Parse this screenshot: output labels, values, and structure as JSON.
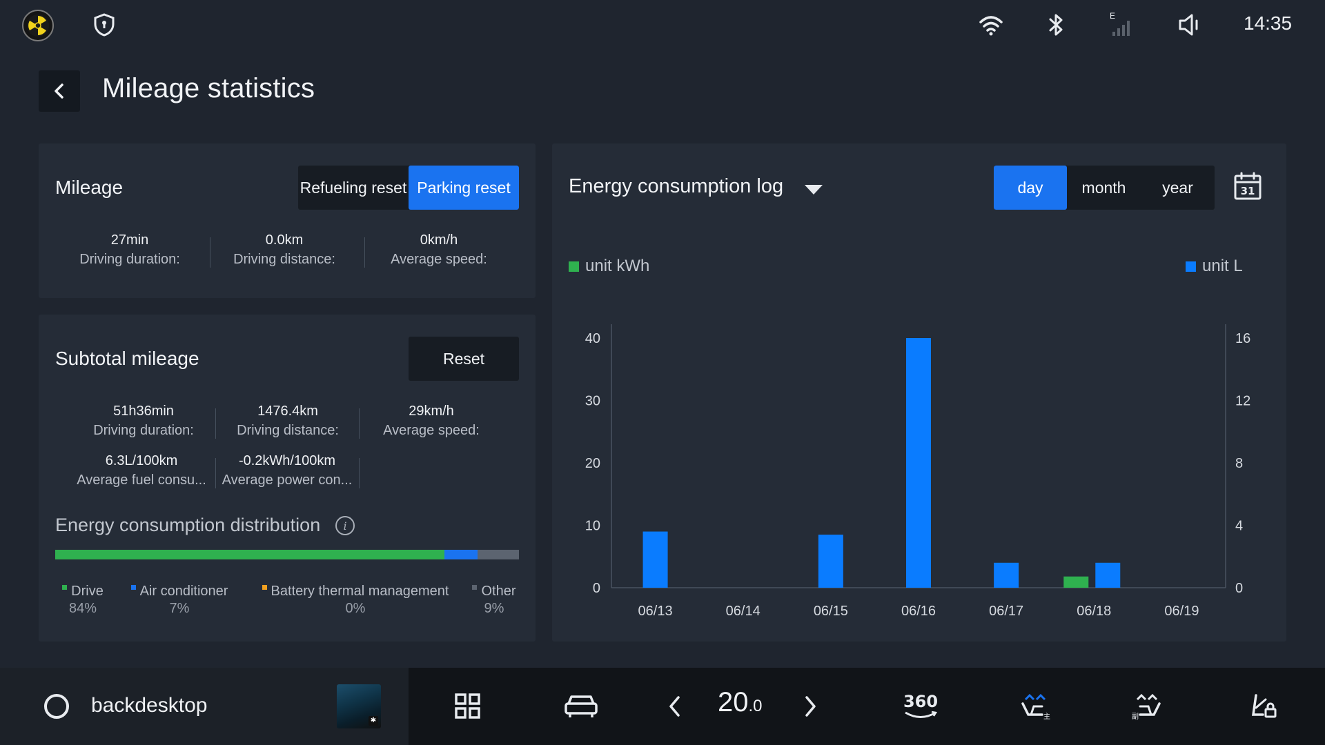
{
  "status_bar": {
    "time": "14:35",
    "icons": [
      "logo-icon",
      "shield-icon",
      "wifi-icon",
      "bluetooth-icon",
      "cellular-signal-icon",
      "volume-muted-icon"
    ],
    "signal_label": "E"
  },
  "header": {
    "title": "Mileage statistics"
  },
  "mileage": {
    "title": "Mileage",
    "modes": [
      "Refueling reset",
      "Parking reset"
    ],
    "active_mode": "Parking reset",
    "stats": [
      {
        "value": "27min",
        "label": "Driving duration:"
      },
      {
        "value": "0.0km",
        "label": "Driving distance:"
      },
      {
        "value": "0km/h",
        "label": "Average speed:"
      }
    ]
  },
  "subtotal": {
    "title": "Subtotal mileage",
    "reset_label": "Reset",
    "stats": [
      {
        "value": "51h36min",
        "label": "Driving duration:"
      },
      {
        "value": "1476.4km",
        "label": "Driving distance:"
      },
      {
        "value": "29km/h",
        "label": "Average speed:"
      },
      {
        "value": "6.3L/100km",
        "label": "Average fuel consu..."
      },
      {
        "value": "-0.2kWh/100km",
        "label": "Average power con..."
      }
    ]
  },
  "distribution": {
    "title": "Energy consumption distribution",
    "bar_shares": [
      84,
      7,
      0,
      9
    ],
    "items": [
      {
        "name": "Drive",
        "percent": "84%",
        "color": "#2fb14f"
      },
      {
        "name": "Air conditioner",
        "percent": "7%",
        "color": "#1a73f0"
      },
      {
        "name": "Battery thermal management",
        "percent": "0%",
        "color": "#f0a020"
      },
      {
        "name": "Other",
        "percent": "9%",
        "color": "#5c6470"
      }
    ]
  },
  "energy_log": {
    "title": "Energy consumption log",
    "periods": [
      "day",
      "month",
      "year"
    ],
    "active_period": "day",
    "calendar_day": "31",
    "unit_left": "unit kWh",
    "unit_right": "unit L",
    "colors": {
      "kwh": "#2fb14f",
      "liters": "#0a7cff"
    }
  },
  "chart_data": {
    "type": "bar",
    "categories": [
      "06/13",
      "06/14",
      "06/15",
      "06/16",
      "06/17",
      "06/18",
      "06/19"
    ],
    "series": [
      {
        "name": "unit kWh",
        "axis": "left",
        "values": [
          0,
          0,
          0,
          0,
          0,
          1.8,
          0
        ]
      },
      {
        "name": "unit L",
        "axis": "right",
        "values": [
          3.6,
          0,
          3.4,
          16.0,
          1.6,
          1.6,
          0
        ]
      }
    ],
    "y_left": {
      "ticks": [
        0,
        10,
        20,
        30,
        40
      ],
      "lim": [
        0,
        40
      ]
    },
    "y_right": {
      "ticks": [
        0,
        4,
        8,
        12,
        16
      ],
      "lim": [
        0,
        16
      ]
    },
    "grid": false,
    "legend": "top"
  },
  "dock": {
    "label": "backdesktop",
    "temperature": "20",
    "temperature_decimal": ".0",
    "icons": [
      "home-circle-icon",
      "media-thumbnail",
      "apps-grid-icon",
      "car-icon",
      "temp-down-icon",
      "temp-up-icon",
      "360-camera-icon",
      "driver-seat-fan-icon",
      "passenger-seat-fan-icon",
      "seat-lock-icon"
    ],
    "cam_label": "360"
  }
}
